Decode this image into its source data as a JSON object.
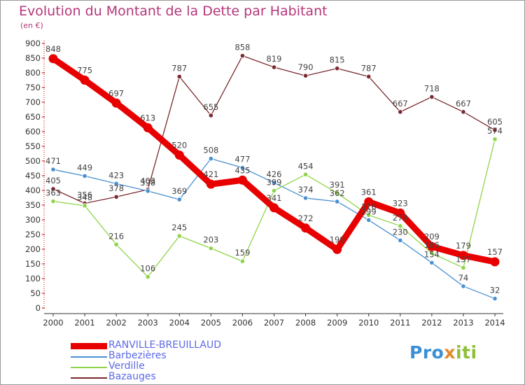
{
  "title": "Evolution du Montant de la Dette par Habitant",
  "subtitle": "(en €)",
  "logo": {
    "p1": "Pro",
    "p2": "x",
    "p3": "iti"
  },
  "chart_data": {
    "type": "line",
    "title": "Evolution du Montant de la Dette par Habitant",
    "ylabel": "(en €)",
    "x": [
      2000,
      2001,
      2002,
      2003,
      2004,
      2005,
      2006,
      2007,
      2008,
      2009,
      2010,
      2011,
      2012,
      2013,
      2014
    ],
    "ylim": [
      0,
      900
    ],
    "yticks": [
      0,
      50,
      100,
      150,
      200,
      250,
      300,
      350,
      400,
      450,
      500,
      550,
      600,
      650,
      700,
      750,
      800,
      850,
      900
    ],
    "grid": false,
    "legend_position": "bottom-left",
    "series": [
      {
        "name": "Bazauges",
        "color": "#7a2a2e",
        "values": [
          405,
          356,
          378,
          403,
          787,
          655,
          858,
          819,
          790,
          815,
          787,
          667,
          718,
          667,
          605
        ]
      },
      {
        "name": "Barbezières",
        "color": "#4a90d0",
        "values": [
          471,
          449,
          423,
          398,
          369,
          508,
          477,
          426,
          374,
          362,
          299,
          230,
          154,
          74,
          32
        ]
      },
      {
        "name": "Verdille",
        "color": "#8fd44a",
        "values": [
          363,
          348,
          216,
          106,
          245,
          203,
          159,
          399,
          454,
          391,
          316,
          279,
          186,
          137,
          574
        ]
      },
      {
        "name": "RANVILLE-BREUILLAUD",
        "color": "#e80000",
        "values": [
          848,
          775,
          697,
          613,
          520,
          421,
          435,
          341,
          272,
          199,
          361,
          323,
          209,
          179,
          157
        ]
      }
    ]
  }
}
